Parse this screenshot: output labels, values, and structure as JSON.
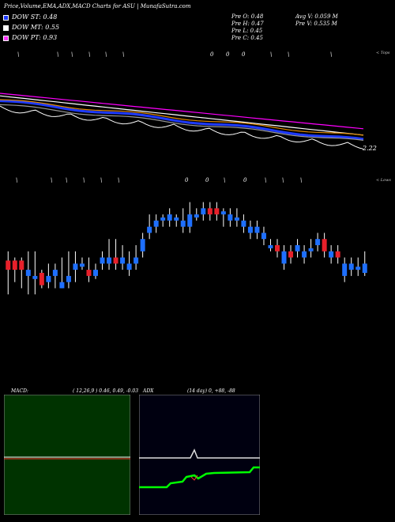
{
  "header": {
    "title": "Price,Volume,EMA,ADX,MACD Charts for ASU",
    "site": "MunafaSutra.com",
    "dow": [
      {
        "label": "DOW ST: 0.48",
        "color": "#1e3aff"
      },
      {
        "label": "DOW MT: 0.55",
        "color": "#ffffff"
      },
      {
        "label": "DOW PT: 0.93",
        "color": "#ff33ff"
      }
    ],
    "prev": {
      "open": "Pre   O: 0.48",
      "high": "Pre   H: 0.47",
      "low": "Pre   L: 0.45",
      "close": "Pre   C: 0.45"
    },
    "avg_volume": "Avg V: 0.059 M",
    "prev_volume": "Pre   V: 0.535 M"
  },
  "labels": {
    "tops": "< Tops",
    "lows": "< Lows",
    "ema_value": "2.22"
  },
  "markers": {
    "top_row": [
      "\\",
      "\\",
      "\\",
      "\\",
      "\\",
      "\\",
      "0",
      "0",
      "0",
      "\\",
      "\\",
      "\\"
    ],
    "low_row": [
      "\\",
      "\\",
      "\\",
      "\\",
      "\\",
      "\\",
      "0",
      "0",
      "\\",
      "0",
      "\\",
      "\\",
      "\\"
    ]
  },
  "macd": {
    "label": "MACD:",
    "params": "( 12,26,9 ) 0.46,  0.49,  -0.03"
  },
  "adx": {
    "label": "ADX",
    "params": "(14  day) 0,  +88,  -88"
  },
  "chart_data": {
    "type": "candlestick",
    "candles": [
      {
        "dir": "down",
        "o": 0.385,
        "c": 0.37,
        "h": 0.4,
        "l": 0.33
      },
      {
        "dir": "down",
        "o": 0.385,
        "c": 0.37,
        "h": 0.39,
        "l": 0.35
      },
      {
        "dir": "down",
        "o": 0.385,
        "c": 0.37,
        "h": 0.39,
        "l": 0.34
      },
      {
        "dir": "up",
        "o": 0.37,
        "c": 0.36,
        "h": 0.4,
        "l": 0.33
      },
      {
        "dir": "up",
        "o": 0.36,
        "c": 0.355,
        "h": 0.4,
        "l": 0.33
      },
      {
        "dir": "down",
        "o": 0.365,
        "c": 0.345,
        "h": 0.37,
        "l": 0.34
      },
      {
        "dir": "up",
        "o": 0.35,
        "c": 0.36,
        "h": 0.38,
        "l": 0.34
      },
      {
        "dir": "up",
        "o": 0.37,
        "c": 0.36,
        "h": 0.38,
        "l": 0.34
      },
      {
        "dir": "up",
        "o": 0.35,
        "c": 0.34,
        "h": 0.39,
        "l": 0.34
      },
      {
        "dir": "up",
        "o": 0.35,
        "c": 0.36,
        "h": 0.4,
        "l": 0.34
      },
      {
        "dir": "up",
        "o": 0.38,
        "c": 0.37,
        "h": 0.4,
        "l": 0.35
      },
      {
        "dir": "up",
        "o": 0.38,
        "c": 0.375,
        "h": 0.39,
        "l": 0.37
      },
      {
        "dir": "down",
        "o": 0.37,
        "c": 0.36,
        "h": 0.39,
        "l": 0.35
      },
      {
        "dir": "up",
        "o": 0.36,
        "c": 0.37,
        "h": 0.38,
        "l": 0.355
      },
      {
        "dir": "up",
        "o": 0.38,
        "c": 0.39,
        "h": 0.4,
        "l": 0.37
      },
      {
        "dir": "up",
        "o": 0.39,
        "c": 0.38,
        "h": 0.42,
        "l": 0.37
      },
      {
        "dir": "down",
        "o": 0.39,
        "c": 0.38,
        "h": 0.42,
        "l": 0.37
      },
      {
        "dir": "up",
        "o": 0.38,
        "c": 0.39,
        "h": 0.41,
        "l": 0.37
      },
      {
        "dir": "up",
        "o": 0.37,
        "c": 0.38,
        "h": 0.4,
        "l": 0.36
      },
      {
        "dir": "up",
        "o": 0.38,
        "c": 0.39,
        "h": 0.41,
        "l": 0.37
      },
      {
        "dir": "up",
        "o": 0.4,
        "c": 0.42,
        "h": 0.43,
        "l": 0.39
      },
      {
        "dir": "up",
        "o": 0.43,
        "c": 0.44,
        "h": 0.46,
        "l": 0.42
      },
      {
        "dir": "up",
        "o": 0.44,
        "c": 0.45,
        "h": 0.46,
        "l": 0.43
      },
      {
        "dir": "up",
        "o": 0.45,
        "c": 0.455,
        "h": 0.46,
        "l": 0.44
      },
      {
        "dir": "up",
        "o": 0.45,
        "c": 0.46,
        "h": 0.47,
        "l": 0.44
      },
      {
        "dir": "up",
        "o": 0.45,
        "c": 0.455,
        "h": 0.46,
        "l": 0.44
      },
      {
        "dir": "up",
        "o": 0.44,
        "c": 0.45,
        "h": 0.47,
        "l": 0.43
      },
      {
        "dir": "up",
        "o": 0.44,
        "c": 0.46,
        "h": 0.48,
        "l": 0.43
      },
      {
        "dir": "up",
        "o": 0.46,
        "c": 0.455,
        "h": 0.47,
        "l": 0.45
      },
      {
        "dir": "up",
        "o": 0.46,
        "c": 0.47,
        "h": 0.48,
        "l": 0.45
      },
      {
        "dir": "down",
        "o": 0.47,
        "c": 0.46,
        "h": 0.48,
        "l": 0.45
      },
      {
        "dir": "down",
        "o": 0.47,
        "c": 0.46,
        "h": 0.48,
        "l": 0.45
      },
      {
        "dir": "up",
        "o": 0.46,
        "c": 0.465,
        "h": 0.47,
        "l": 0.44
      },
      {
        "dir": "up",
        "o": 0.45,
        "c": 0.46,
        "h": 0.47,
        "l": 0.44
      },
      {
        "dir": "up",
        "o": 0.45,
        "c": 0.455,
        "h": 0.47,
        "l": 0.44
      },
      {
        "dir": "up",
        "o": 0.44,
        "c": 0.45,
        "h": 0.46,
        "l": 0.43
      },
      {
        "dir": "up",
        "o": 0.43,
        "c": 0.44,
        "h": 0.45,
        "l": 0.42
      },
      {
        "dir": "up",
        "o": 0.43,
        "c": 0.44,
        "h": 0.45,
        "l": 0.42
      },
      {
        "dir": "up",
        "o": 0.42,
        "c": 0.43,
        "h": 0.44,
        "l": 0.41
      },
      {
        "dir": "up",
        "o": 0.41,
        "c": 0.405,
        "h": 0.42,
        "l": 0.4
      },
      {
        "dir": "down",
        "o": 0.41,
        "c": 0.4,
        "h": 0.42,
        "l": 0.39
      },
      {
        "dir": "up",
        "o": 0.38,
        "c": 0.4,
        "h": 0.41,
        "l": 0.37
      },
      {
        "dir": "down",
        "o": 0.4,
        "c": 0.39,
        "h": 0.41,
        "l": 0.38
      },
      {
        "dir": "up",
        "o": 0.4,
        "c": 0.41,
        "h": 0.42,
        "l": 0.39
      },
      {
        "dir": "up",
        "o": 0.39,
        "c": 0.4,
        "h": 0.41,
        "l": 0.38
      },
      {
        "dir": "up",
        "o": 0.4,
        "c": 0.405,
        "h": 0.42,
        "l": 0.39
      },
      {
        "dir": "up",
        "o": 0.41,
        "c": 0.42,
        "h": 0.43,
        "l": 0.4
      },
      {
        "dir": "down",
        "o": 0.42,
        "c": 0.4,
        "h": 0.43,
        "l": 0.39
      },
      {
        "dir": "up",
        "o": 0.39,
        "c": 0.4,
        "h": 0.41,
        "l": 0.38
      },
      {
        "dir": "down",
        "o": 0.4,
        "c": 0.39,
        "h": 0.41,
        "l": 0.38
      },
      {
        "dir": "up",
        "o": 0.36,
        "c": 0.38,
        "h": 0.39,
        "l": 0.35
      },
      {
        "dir": "up",
        "o": 0.37,
        "c": 0.38,
        "h": 0.39,
        "l": 0.36
      },
      {
        "dir": "up",
        "o": 0.37,
        "c": 0.375,
        "h": 0.39,
        "l": 0.36
      },
      {
        "dir": "up",
        "o": 0.365,
        "c": 0.38,
        "h": 0.4,
        "l": 0.36
      }
    ],
    "ylim": [
      0.32,
      0.5
    ],
    "ema_lines": [
      {
        "color": "#ff00ff",
        "start": 2.6,
        "end": 2.32
      },
      {
        "color": "#ffffff",
        "start": 2.58,
        "end": 2.27
      },
      {
        "color": "#1e3aff",
        "start": 2.54,
        "end": 2.23
      },
      {
        "color": "#e08a00",
        "start": 2.55,
        "end": 2.26
      },
      {
        "color": "#999999",
        "start": 2.51,
        "end": 2.22
      }
    ],
    "ema_ylim": [
      2.15,
      2.65
    ],
    "colors": {
      "up": "#1e6fff",
      "down": "#e8202a"
    }
  }
}
